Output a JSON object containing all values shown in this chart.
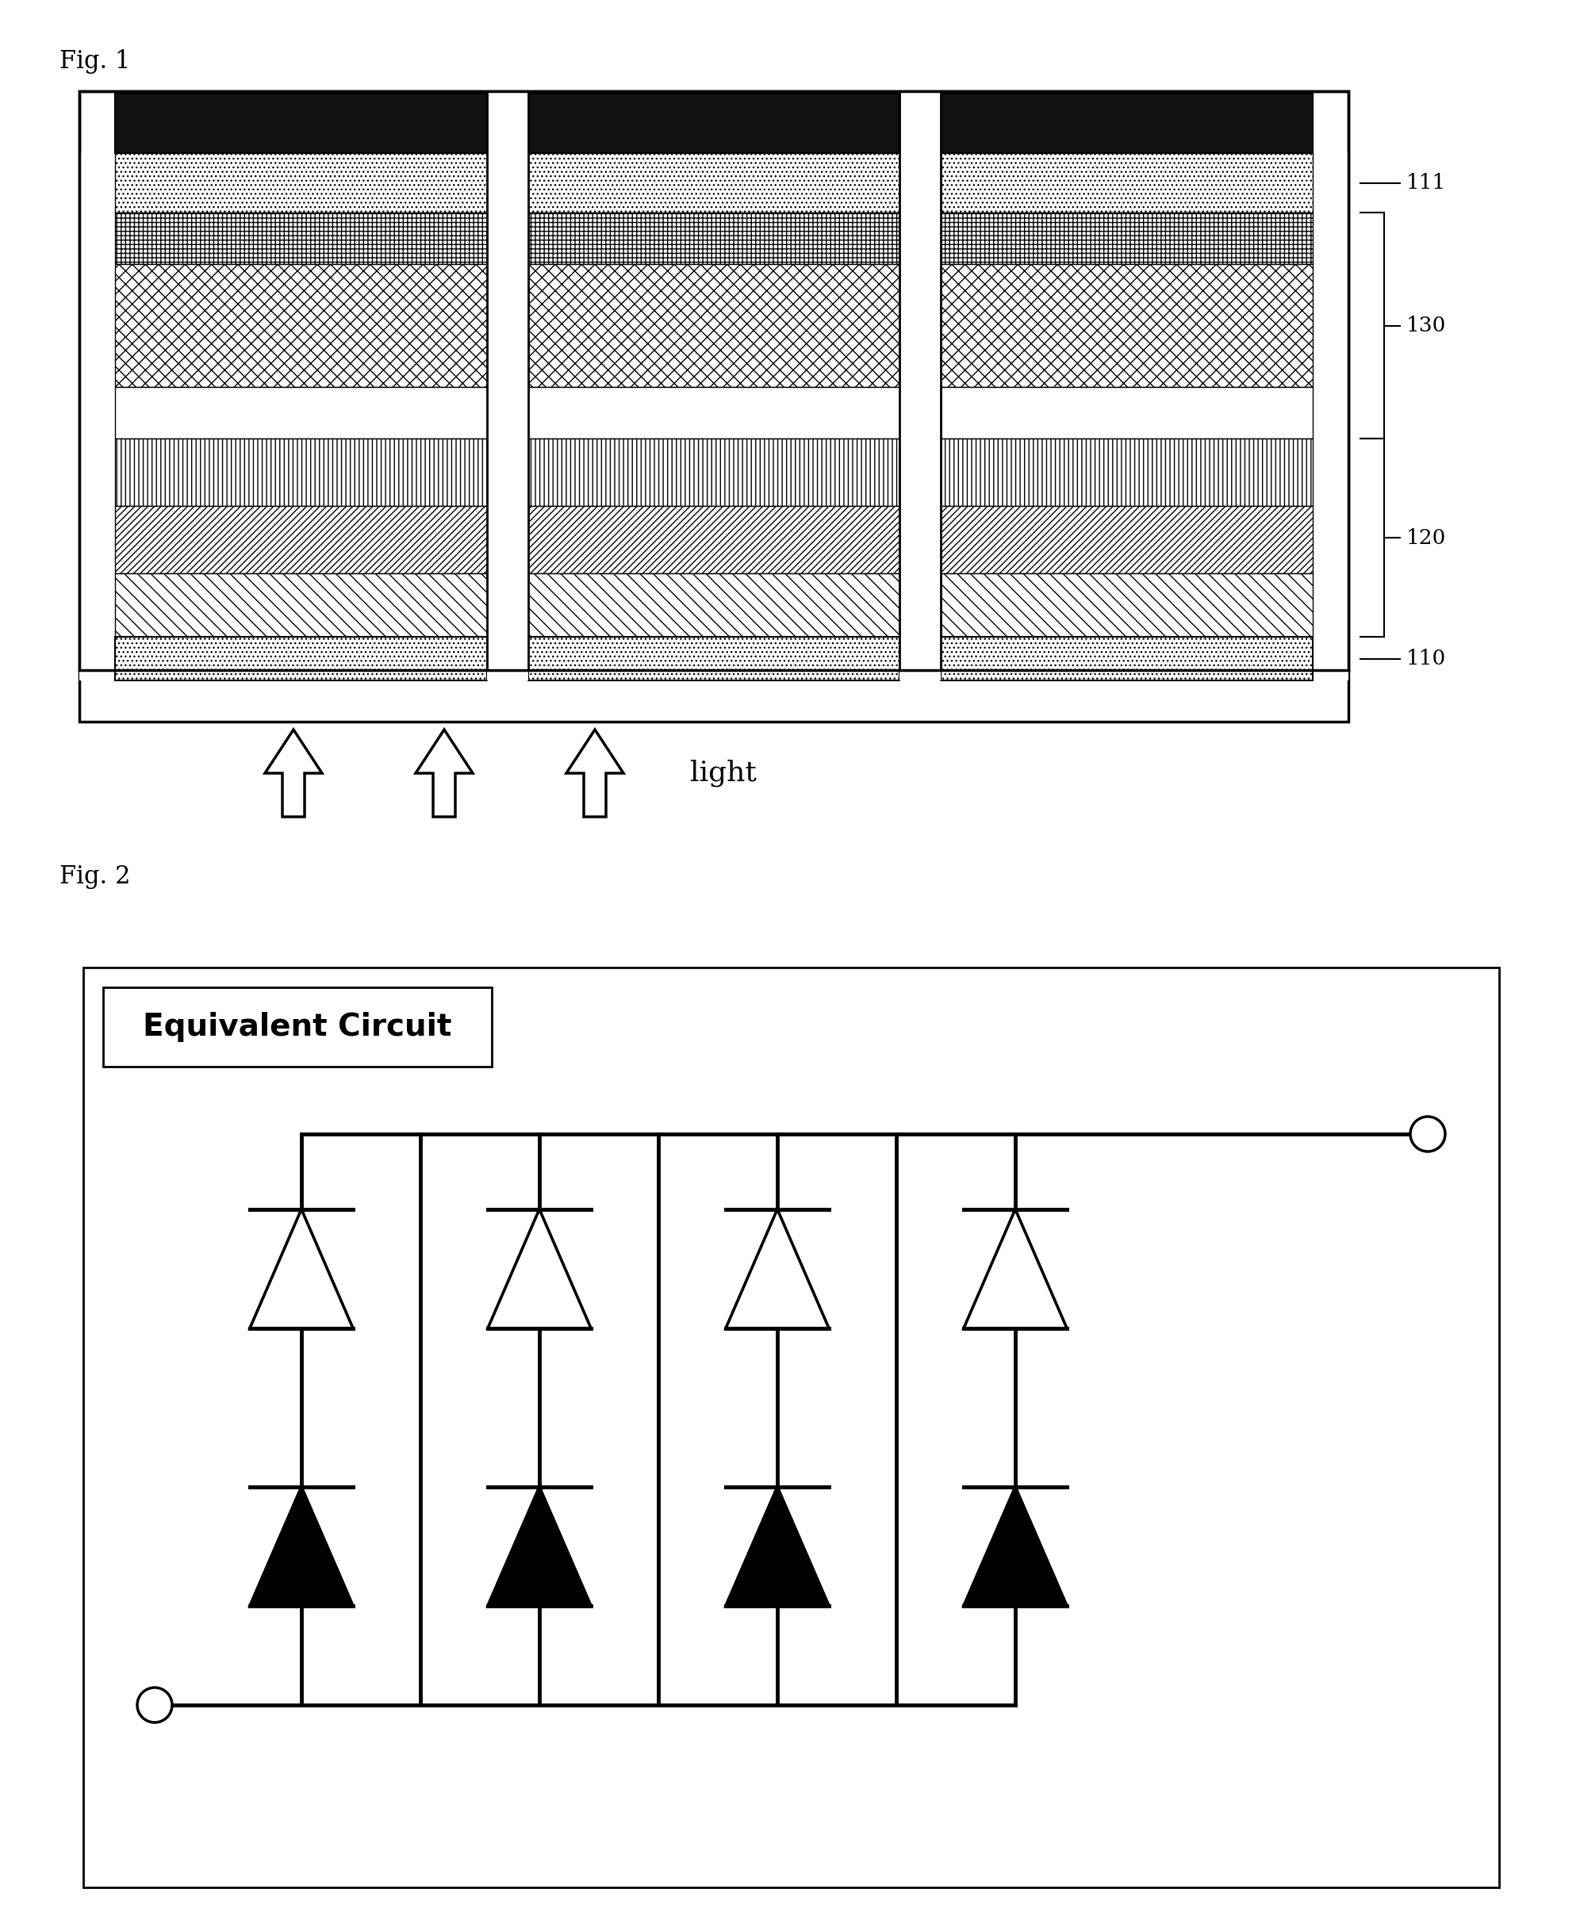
{
  "fig1_label": "Fig. 1",
  "fig2_label": "Fig. 2",
  "light_label": "light",
  "equiv_circuit_label": "Equivalent Circuit",
  "bg_color": "#ffffff"
}
